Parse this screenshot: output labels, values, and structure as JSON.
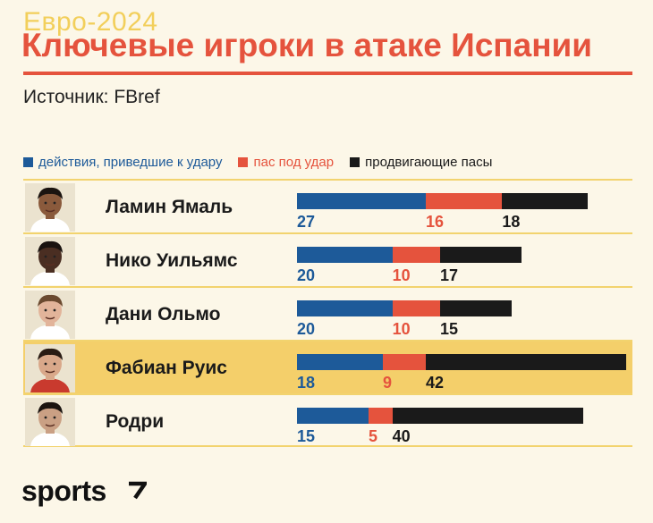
{
  "header": {
    "kicker": "Евро-2024",
    "title": "Ключевые игроки в атаке Испании",
    "source": "Источник: FBref"
  },
  "colors": {
    "series_1": "#1d5a99",
    "series_2": "#e5533d",
    "series_3": "#1a1a1a",
    "highlight": "#f4cf6a",
    "accent": "#e5533d"
  },
  "chart_data": {
    "type": "bar",
    "orientation": "horizontal",
    "stacked": true,
    "categories": [
      "Ламин Ямаль",
      "Нико Уильямс",
      "Дани Ольмо",
      "Фабиан Руис",
      "Родри"
    ],
    "series": [
      {
        "name": "действия, приведшие к удару",
        "color": "#1d5a99",
        "values": [
          27,
          20,
          20,
          18,
          15
        ]
      },
      {
        "name": "пас под удар",
        "color": "#e5533d",
        "values": [
          16,
          10,
          10,
          9,
          5
        ]
      },
      {
        "name": "продвигающие пасы",
        "color": "#1a1a1a",
        "values": [
          18,
          17,
          15,
          42,
          40
        ]
      }
    ],
    "highlighted_category": "Фабиан Руис",
    "legend_position": "top-left",
    "grid": false
  },
  "footer": {
    "logo": "sports"
  },
  "icons": {
    "avatar": "player-photo-icon",
    "logo_mark": "sports-logo-mark-icon"
  }
}
